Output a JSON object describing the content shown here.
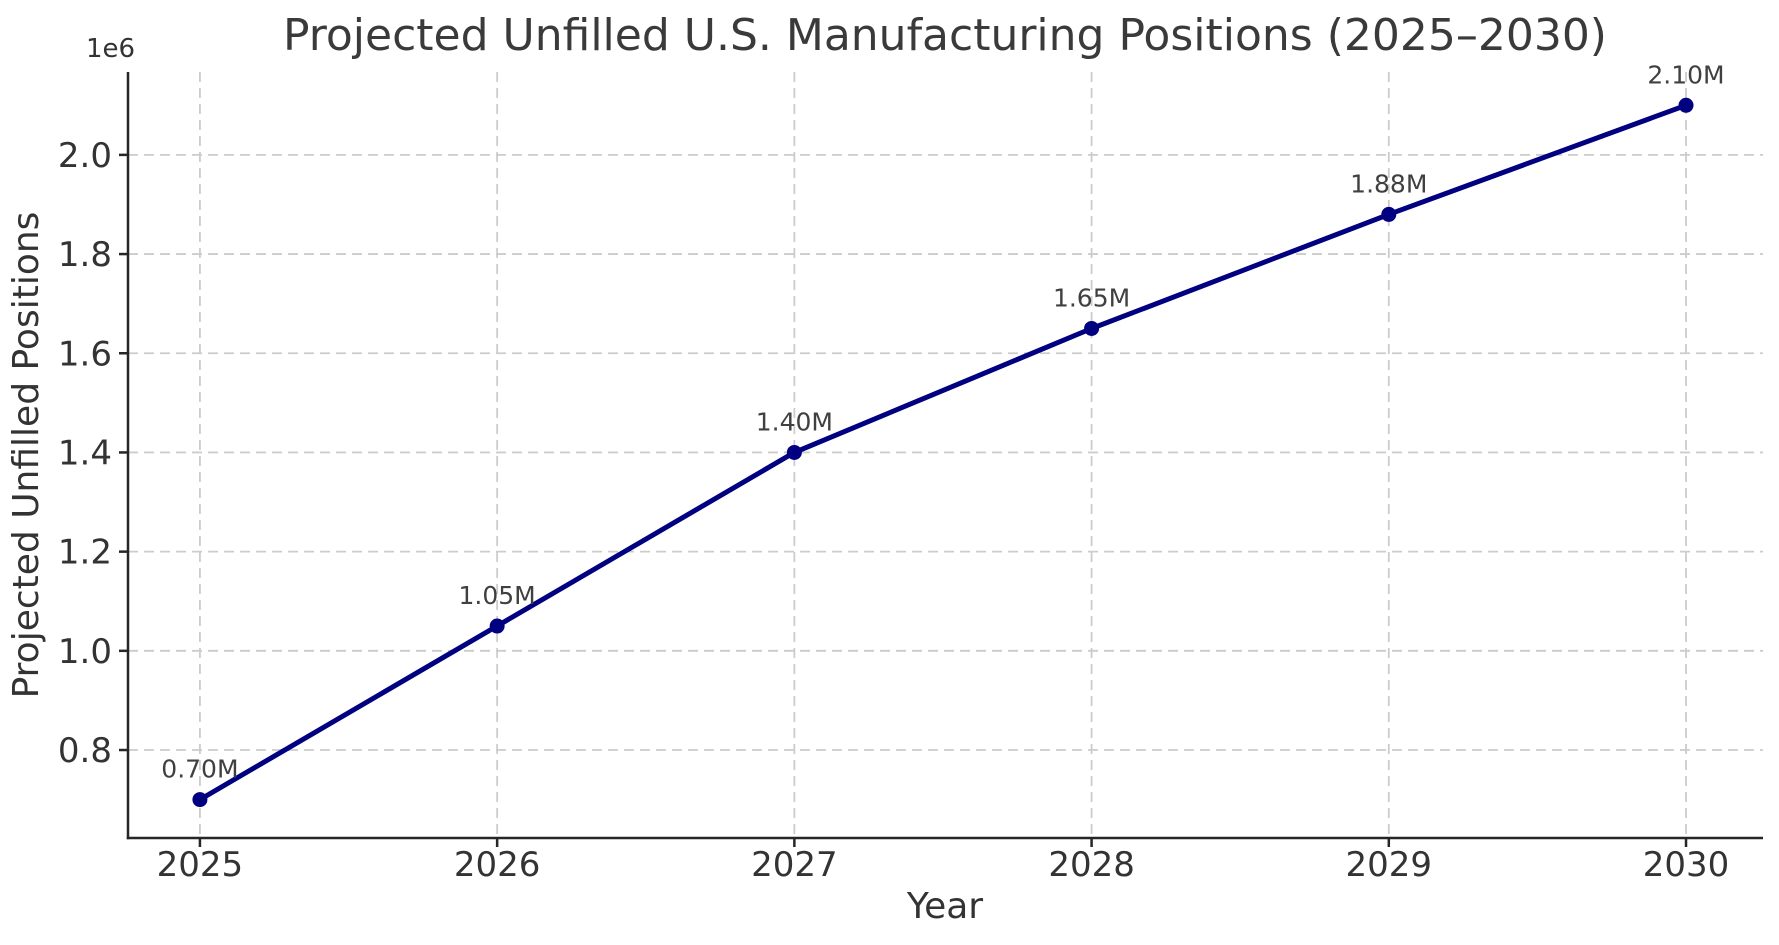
{
  "chart_data": {
    "type": "line",
    "title": "Projected Unfilled U.S. Manufacturing Positions (2025–2030)",
    "xlabel": "Year",
    "ylabel": "Projected Unfilled Positions",
    "y_offset_label": "1e6",
    "x": [
      2025,
      2026,
      2027,
      2028,
      2029,
      2030
    ],
    "values": [
      700000,
      1050000,
      1400000,
      1650000,
      1880000,
      2100000
    ],
    "point_labels": [
      "0.70M",
      "1.05M",
      "1.40M",
      "1.65M",
      "1.88M",
      "2.10M"
    ],
    "x_tick_labels": [
      "2025",
      "2026",
      "2027",
      "2028",
      "2029",
      "2030"
    ],
    "x_tick_values": [
      2025,
      2026,
      2027,
      2028,
      2029,
      2030
    ],
    "y_tick_labels": [
      "0.8",
      "1.0",
      "1.2",
      "1.4",
      "1.6",
      "1.8",
      "2.0"
    ],
    "y_tick_values": [
      800000,
      1000000,
      1200000,
      1400000,
      1600000,
      1800000,
      2000000
    ],
    "xlim": [
      2024.758,
      2030.259
    ],
    "ylim": [
      622600,
      2167100
    ],
    "grid": true,
    "grid_style": "dashed",
    "legend": false,
    "colors": {
      "line": "#000080",
      "marker": "#000080",
      "grid": "#cccccc",
      "spine": "#262626",
      "tick": "#262626",
      "tick_label": "#333333",
      "title": "#3a3a3a",
      "axis_label": "#333333",
      "annotation": "#404040",
      "background": "#ffffff"
    }
  }
}
